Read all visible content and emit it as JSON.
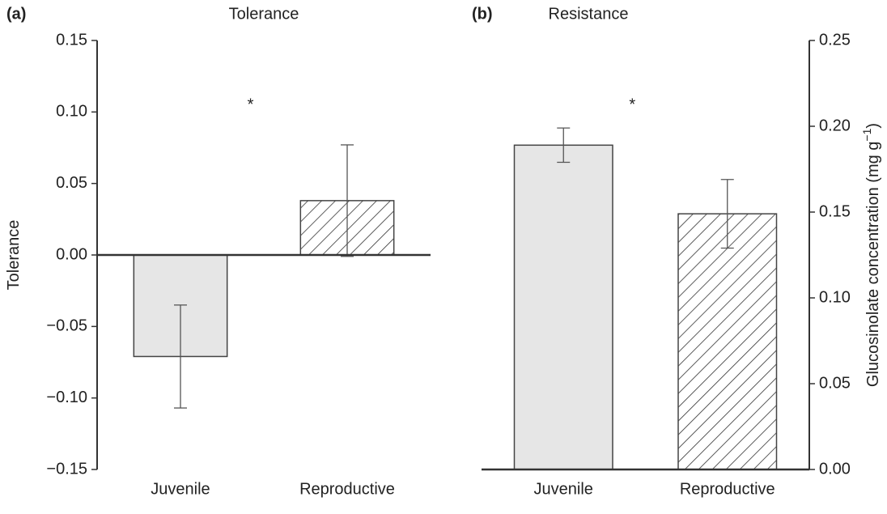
{
  "chart_data": [
    {
      "type": "bar",
      "panel_label": "(a)",
      "title": "Tolerance",
      "y_label": "Tolerance",
      "categories": [
        "Juvenile",
        "Reproductive"
      ],
      "values": [
        -0.071,
        0.038
      ],
      "errors": [
        0.036,
        0.039
      ],
      "colors": [
        "#e6e6e6",
        "#ffffff"
      ],
      "hatch": [
        false,
        true
      ],
      "ylim": [
        -0.15,
        0.15
      ],
      "yticks": [
        {
          "value": -0.15,
          "label": "−0.15"
        },
        {
          "value": -0.1,
          "label": "−0.10"
        },
        {
          "value": -0.05,
          "label": "−0.05"
        },
        {
          "value": 0,
          "label": "0.00"
        },
        0.05,
        {
          "value": 0.1,
          "label": "0.10"
        },
        0.15
      ],
      "y_axis_side": "left",
      "annotation": "*"
    },
    {
      "type": "bar",
      "panel_label": "(b)",
      "title": "Resistance",
      "y_label": "Glucosinolate concentration (mg g",
      "y_label_superscript": "−1",
      "y_label_suffix": ")",
      "categories": [
        "Juvenile",
        "Reproductive"
      ],
      "values": [
        0.189,
        0.149
      ],
      "errors": [
        0.01,
        0.02
      ],
      "colors": [
        "#e6e6e6",
        "#ffffff"
      ],
      "hatch": [
        false,
        true
      ],
      "ylim": [
        0,
        0.25
      ],
      "yticks": [
        {
          "value": 0,
          "label": "0.00"
        },
        0.05,
        {
          "value": 0.1,
          "label": "0.10"
        },
        0.15,
        {
          "value": 0.2,
          "label": "0.20"
        },
        0.25
      ],
      "y_axis_side": "right",
      "annotation": "*"
    }
  ]
}
